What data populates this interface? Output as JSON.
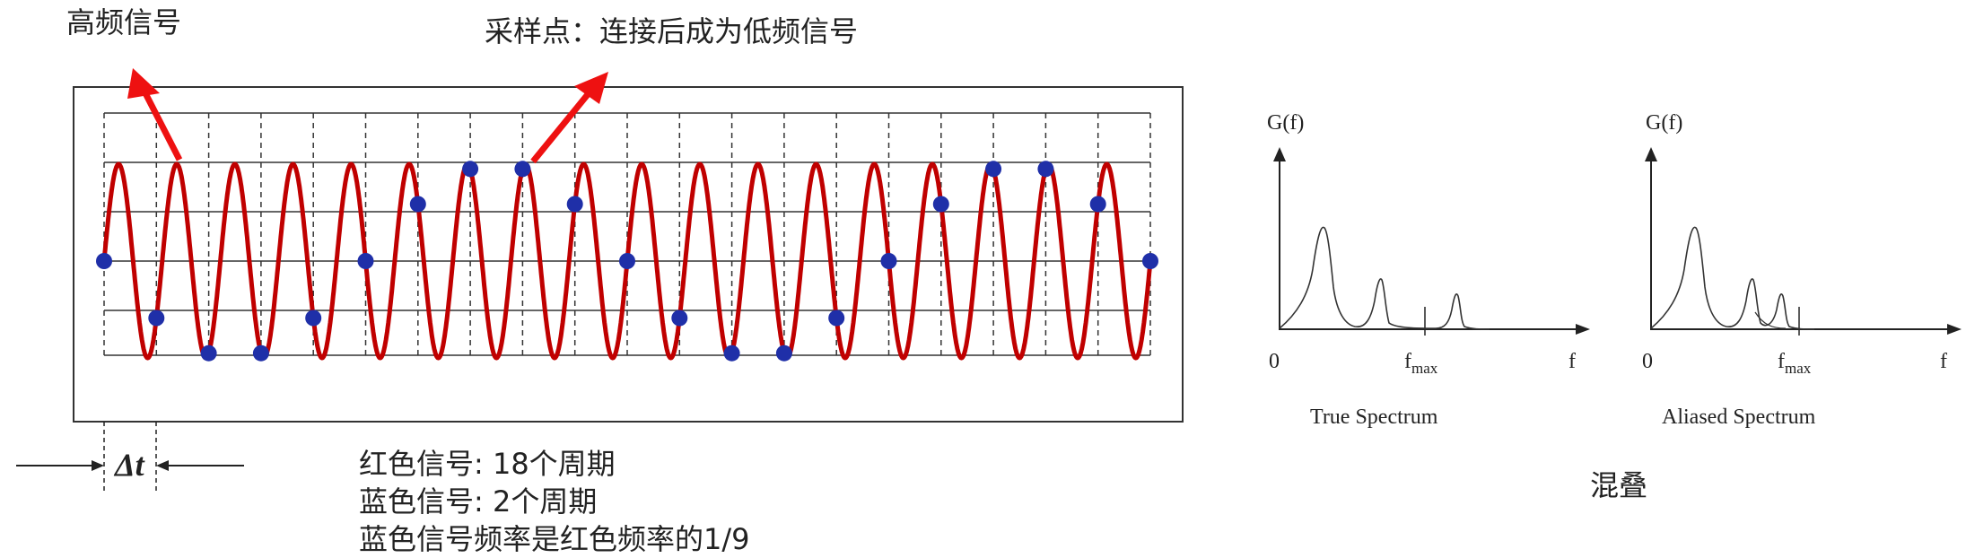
{
  "labels": {
    "high_freq": "高频信号",
    "sample_points": "采样点：连接后成为低频信号",
    "delta_t": "Δt",
    "aliasing": "混叠"
  },
  "notes": [
    "红色信号: 18个周期",
    "蓝色信号: 2个周期",
    "蓝色信号频率是红色频率的1/9"
  ],
  "signal": {
    "red_cycles": 18,
    "blue_cycles": 2,
    "red_color": "#c00000",
    "dot_color": "#1f2fa8",
    "arrow_color": "#ee1111"
  },
  "spectra": [
    {
      "y_axis_label": "G(f)",
      "origin_label": "0",
      "f_label": "f",
      "fmax_label": "f",
      "fmax_sub": "max",
      "caption": "True Spectrum"
    },
    {
      "y_axis_label": "G(f)",
      "origin_label": "0",
      "f_label": "f",
      "fmax_label": "f",
      "fmax_sub": "max",
      "caption": "Aliased Spectrum"
    }
  ]
}
